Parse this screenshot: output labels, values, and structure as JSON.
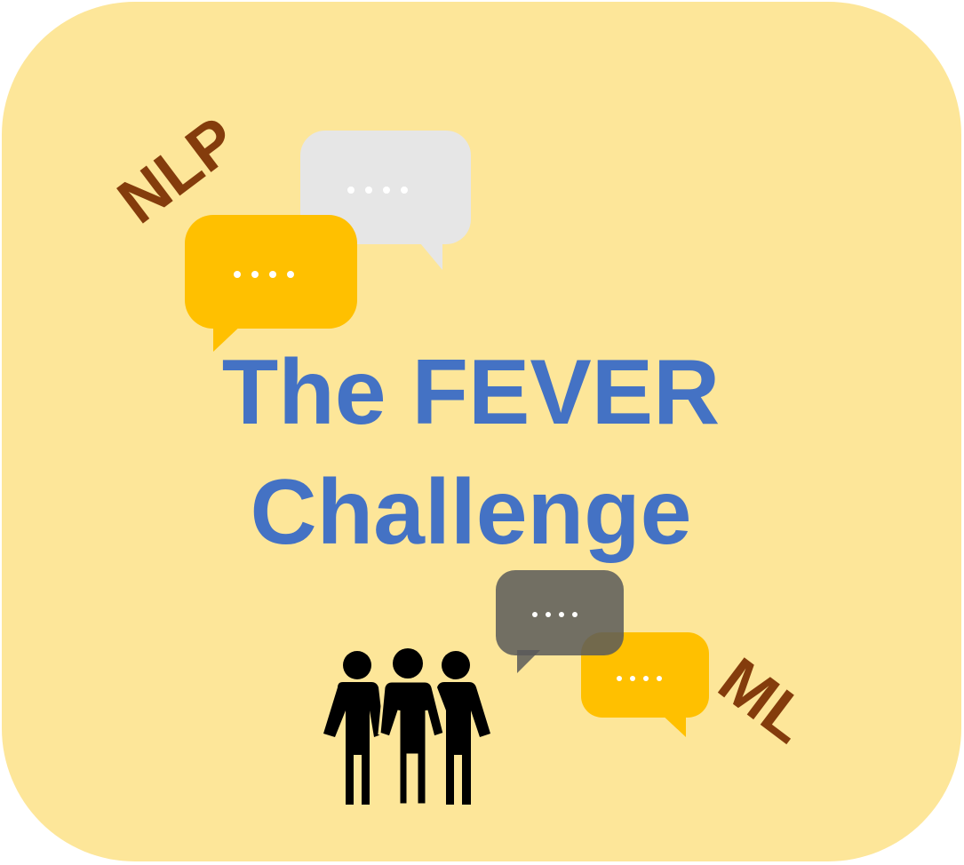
{
  "colors": {
    "background": "#fde699",
    "title": "#4472c4",
    "tag_text": "#843c0c",
    "bubble_yellow": "#ffc000",
    "bubble_light_gray": "#e6e6e6",
    "bubble_dark_gray": "#595959",
    "people": "#000000",
    "dots": "#ffffff"
  },
  "title": {
    "line1": "The FEVER",
    "line2": "Challenge"
  },
  "tags": {
    "top_left": "NLP",
    "bottom_right": "ML"
  },
  "icons": {
    "bubbles": [
      "speech-bubble-icon",
      "speech-bubble-icon",
      "speech-bubble-icon",
      "speech-bubble-icon"
    ],
    "people": "people-group-icon"
  }
}
